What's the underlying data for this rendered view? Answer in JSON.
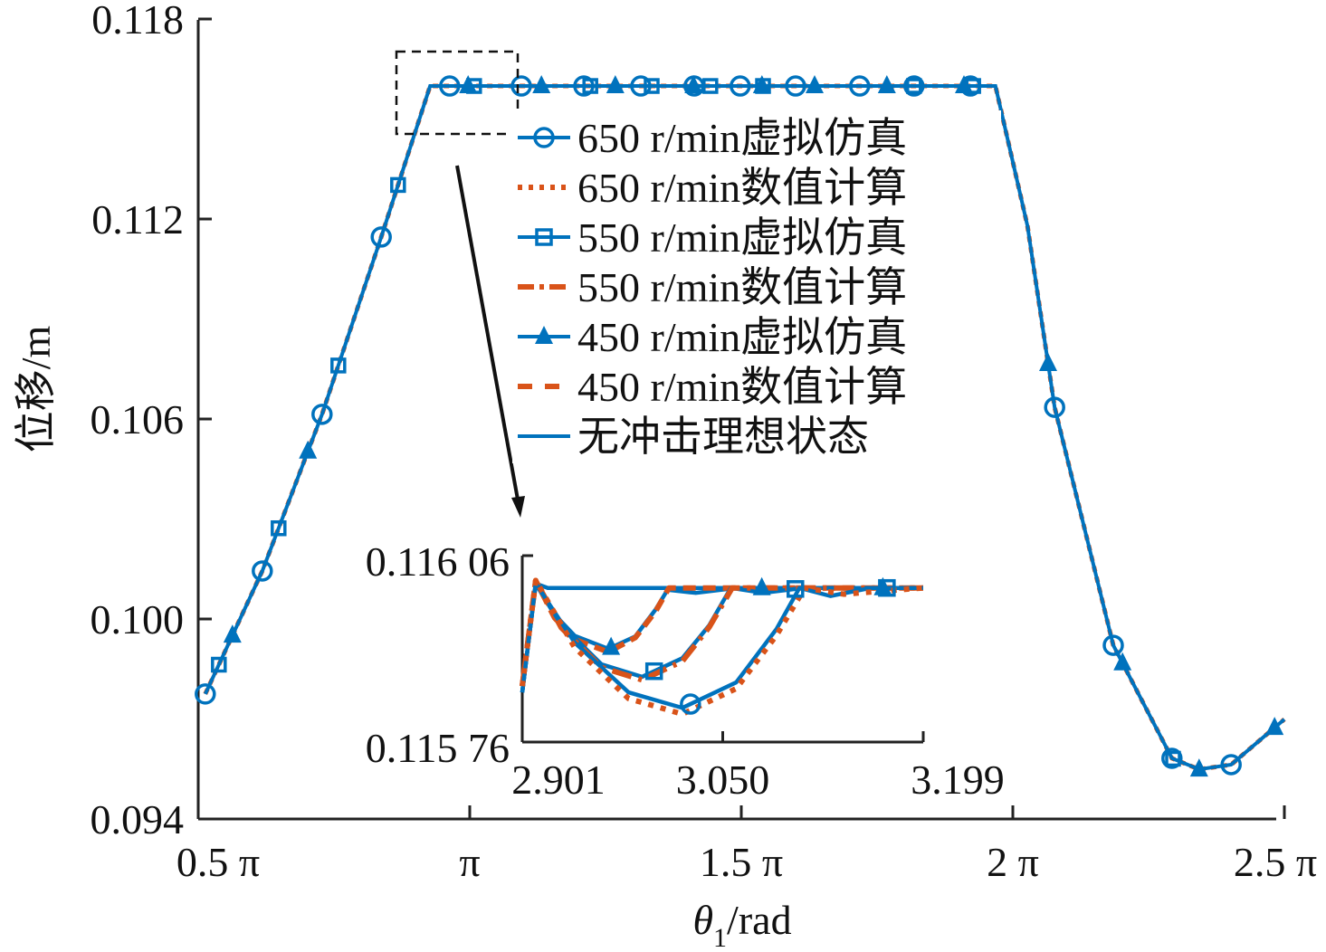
{
  "chart_data": {
    "type": "line",
    "xlabel": "θ1/rad",
    "xlabel_main": "θ",
    "xlabel_sub": "1",
    "xlabel_unit": "/rad",
    "ylabel": "位移/m",
    "xlim_pi": [
      0.5,
      2.5
    ],
    "ylim": [
      0.094,
      0.118
    ],
    "x_ticks": [
      {
        "v": 0.5,
        "label": "0.5 π"
      },
      {
        "v": 1,
        "label": "π"
      },
      {
        "v": 1.5,
        "label": "1.5 π"
      },
      {
        "v": 2,
        "label": "2 π"
      },
      {
        "v": 2.5,
        "label": "2.5 π"
      }
    ],
    "y_ticks": [
      {
        "v": 0.118,
        "label": "0.118"
      },
      {
        "v": 0.112,
        "label": "0.112"
      },
      {
        "v": 0.106,
        "label": "0.106"
      },
      {
        "v": 0.1,
        "label": "0.100"
      },
      {
        "v": 0.094,
        "label": "0.094"
      }
    ],
    "colors": {
      "sim": "#0072BD",
      "num": "#D95319"
    },
    "main_curve_x_in_pi": [
      0.513,
      0.618,
      0.728,
      0.837,
      0.927,
      1.968,
      2.027,
      2.077,
      2.185,
      2.293,
      2.343,
      2.402,
      2.5
    ],
    "main_curve_y": [
      0.09775,
      0.10144,
      0.10614,
      0.11146,
      0.11599,
      0.11599,
      0.11179,
      0.10635,
      0.09921,
      0.09582,
      0.09549,
      0.09563,
      0.09699
    ],
    "legend": [
      {
        "label": "650 r/min虚拟仿真",
        "style": "solid",
        "marker": "circle",
        "color": "#0072BD"
      },
      {
        "label": "650 r/min数值计算",
        "style": "dotted",
        "marker": "none",
        "color": "#D95319"
      },
      {
        "label": "550 r/min虚拟仿真",
        "style": "solid",
        "marker": "square",
        "color": "#0072BD"
      },
      {
        "label": "550 r/min数值计算",
        "style": "dashdot",
        "marker": "none",
        "color": "#D95319"
      },
      {
        "label": "450 r/min虚拟仿真",
        "style": "solid",
        "marker": "triangle",
        "color": "#0072BD"
      },
      {
        "label": "450 r/min数值计算",
        "style": "dashed",
        "marker": "none",
        "color": "#D95319"
      },
      {
        "label": "无冲击理想状态",
        "style": "solid",
        "marker": "none",
        "color": "#0072BD"
      }
    ],
    "markers_x_in_pi": {
      "circle": [
        0.513,
        0.618,
        0.728,
        0.837,
        0.963,
        1.095,
        1.21,
        1.315,
        1.413,
        1.498,
        1.6,
        1.718,
        1.818,
        1.922,
        2.077,
        2.185,
        2.293,
        2.402
      ],
      "square": [
        0.538,
        0.648,
        0.758,
        0.868,
        1.008,
        1.222,
        1.335,
        1.443,
        1.54,
        1.818,
        1.927,
        2.295
      ],
      "triangle": [
        0.563,
        0.702,
        0.997,
        1.132,
        1.268,
        1.412,
        1.538,
        1.635,
        1.768,
        1.91,
        2.065,
        2.202,
        2.343,
        2.482
      ]
    },
    "inset": {
      "xlim": [
        2.901,
        3.199
      ],
      "ylim": [
        0.11576,
        0.11606
      ],
      "x_ticks": [
        {
          "v": 2.901,
          "label": "2.901"
        },
        {
          "v": 3.05,
          "label": "3.050"
        },
        {
          "v": 3.199,
          "label": "3.199"
        }
      ],
      "y_ticks": [
        {
          "v": 0.11606,
          "label": "0.116 06"
        },
        {
          "v": 0.11576,
          "label": "0.115 76"
        }
      ],
      "series": [
        {
          "name": "无冲击理想状态",
          "color": "#0072BD",
          "dash": "",
          "points": [
            [
              2.901,
              0.11584
            ],
            [
              2.911,
              0.116015
            ],
            [
              2.92,
              0.116008
            ],
            [
              3.199,
              0.116008
            ]
          ]
        },
        {
          "name": "450 r/min虚拟仿真",
          "color": "#0072BD",
          "dash": "",
          "marker": "triangle",
          "marker_x": [
            2.967,
            3.079,
            3.169
          ],
          "points": [
            [
              2.901,
              0.11584
            ],
            [
              2.911,
              0.116015
            ],
            [
              2.925,
              0.115965
            ],
            [
              2.94,
              0.115931
            ],
            [
              2.965,
              0.11591
            ],
            [
              2.985,
              0.11593
            ],
            [
              3.0,
              0.115973
            ],
            [
              3.009,
              0.116005
            ],
            [
              3.03,
              0.116
            ],
            [
              3.06,
              0.116008
            ],
            [
              3.199,
              0.116008
            ]
          ]
        },
        {
          "name": "450 r/min数值计算",
          "color": "#D95319",
          "dash": "14 8",
          "points": [
            [
              2.901,
              0.11585
            ],
            [
              2.911,
              0.11602
            ],
            [
              2.925,
              0.11596
            ],
            [
              2.94,
              0.115925
            ],
            [
              2.965,
              0.115905
            ],
            [
              2.985,
              0.115928
            ],
            [
              3.0,
              0.11597
            ],
            [
              3.01,
              0.116008
            ],
            [
              3.199,
              0.116008
            ]
          ]
        },
        {
          "name": "550 r/min虚拟仿真",
          "color": "#0072BD",
          "dash": "",
          "marker": "square",
          "marker_x": [
            2.999,
            3.104,
            3.172
          ],
          "points": [
            [
              2.901,
              0.11584
            ],
            [
              2.911,
              0.116015
            ],
            [
              2.93,
              0.115949
            ],
            [
              2.96,
              0.115885
            ],
            [
              2.99,
              0.115865
            ],
            [
              3.02,
              0.115895
            ],
            [
              3.04,
              0.115948
            ],
            [
              3.056,
              0.116008
            ],
            [
              3.08,
              0.116
            ],
            [
              3.11,
              0.116008
            ],
            [
              3.199,
              0.116008
            ]
          ]
        },
        {
          "name": "550 r/min数值计算",
          "color": "#D95319",
          "dash": "22 8 4 8",
          "points": [
            [
              2.901,
              0.11585
            ],
            [
              2.911,
              0.11602
            ],
            [
              2.93,
              0.115944
            ],
            [
              2.96,
              0.11588
            ],
            [
              2.99,
              0.11586
            ],
            [
              3.02,
              0.11589
            ],
            [
              3.04,
              0.115945
            ],
            [
              3.057,
              0.116008
            ],
            [
              3.199,
              0.116008
            ]
          ]
        },
        {
          "name": "650 r/min虚拟仿真",
          "color": "#0072BD",
          "dash": "",
          "marker": "circle",
          "marker_x": [
            3.026
          ],
          "points": [
            [
              2.901,
              0.11584
            ],
            [
              2.911,
              0.116015
            ],
            [
              2.94,
              0.11592
            ],
            [
              2.98,
              0.11584
            ],
            [
              3.02,
              0.115815
            ],
            [
              3.06,
              0.115856
            ],
            [
              3.09,
              0.115942
            ],
            [
              3.107,
              0.116008
            ],
            [
              3.13,
              0.115995
            ],
            [
              3.16,
              0.116008
            ],
            [
              3.199,
              0.116008
            ]
          ]
        },
        {
          "name": "650 r/min数值计算",
          "color": "#D95319",
          "dash": "6 8",
          "points": [
            [
              2.901,
              0.11585
            ],
            [
              2.911,
              0.11602
            ],
            [
              2.94,
              0.115912
            ],
            [
              2.98,
              0.11583
            ],
            [
              3.02,
              0.115805
            ],
            [
              3.06,
              0.115846
            ],
            [
              3.09,
              0.115932
            ],
            [
              3.111,
              0.116008
            ],
            [
              3.14,
              0.115998
            ],
            [
              3.199,
              0.116008
            ]
          ]
        }
      ]
    }
  }
}
